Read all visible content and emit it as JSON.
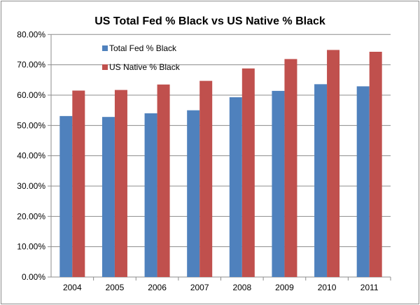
{
  "chart_data": {
    "type": "bar",
    "title": "US Total Fed % Black vs US Native % Black",
    "xlabel": "",
    "ylabel": "",
    "categories": [
      "2004",
      "2005",
      "2006",
      "2007",
      "2008",
      "2009",
      "2010",
      "2011"
    ],
    "series": [
      {
        "name": "Total Fed % Black",
        "color": "#4f81bd",
        "values": [
          53.1,
          52.8,
          54.0,
          55.0,
          59.3,
          61.4,
          63.6,
          62.9
        ]
      },
      {
        "name": "US Native % Black",
        "color": "#c0504d",
        "values": [
          61.5,
          61.7,
          63.5,
          64.7,
          68.8,
          71.9,
          74.9,
          74.3
        ]
      }
    ],
    "ylim": [
      0,
      80
    ],
    "yticks": [
      "0.00%",
      "10.00%",
      "20.00%",
      "30.00%",
      "40.00%",
      "50.00%",
      "60.00%",
      "70.00%",
      "80.00%"
    ],
    "grid": true,
    "legend": "top-left"
  }
}
